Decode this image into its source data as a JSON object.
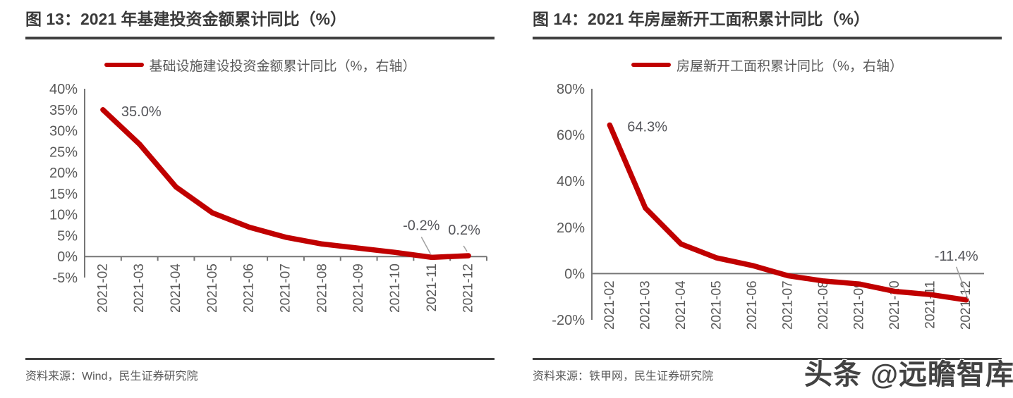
{
  "colors": {
    "series_red": "#C00000",
    "axis_gray": "#767676",
    "tick_label_gray": "#595959",
    "title_dark": "#3a3a3a",
    "rule_dark": "#404040",
    "leader_gray": "#a0a0a0"
  },
  "watermark": {
    "text": "头条 @远瞻智库"
  },
  "charts": [
    {
      "figure_title": "图 13：2021 年基建投资金额累计同比（%）",
      "legend": "基础设施建设投资金额累计同比（%，右轴）",
      "source": "资料来源：Wind，民生证券研究院",
      "chart_data": {
        "type": "line",
        "title": "2021 年基建投资金额累计同比（%）",
        "categories": [
          "2021-02",
          "2021-03",
          "2021-04",
          "2021-05",
          "2021-06",
          "2021-07",
          "2021-08",
          "2021-09",
          "2021-10",
          "2021-11",
          "2021-12"
        ],
        "series": [
          {
            "name": "基础设施建设投资金额累计同比（%，右轴）",
            "color": "#C00000",
            "values": [
              35.0,
              26.8,
              16.6,
              10.4,
              7.0,
              4.6,
              3.0,
              2.0,
              1.0,
              -0.2,
              0.2
            ]
          }
        ],
        "ylim": [
          -5,
          40
        ],
        "yticks": [
          {
            "v": 40,
            "label": "40%"
          },
          {
            "v": 35,
            "label": "35%"
          },
          {
            "v": 30,
            "label": "30%"
          },
          {
            "v": 25,
            "label": "25%"
          },
          {
            "v": 20,
            "label": "20%"
          },
          {
            "v": 15,
            "label": "15%"
          },
          {
            "v": 10,
            "label": "10%"
          },
          {
            "v": 5,
            "label": "5%"
          },
          {
            "v": 0,
            "label": "0%"
          },
          {
            "v": -5,
            "label": "-5%"
          }
        ],
        "point_labels": [
          {
            "index": 0,
            "text": "35.0%"
          },
          {
            "index": 9,
            "text": "-0.2%"
          },
          {
            "index": 10,
            "text": "0.2%"
          }
        ],
        "legend_position": "top",
        "grid": false
      }
    },
    {
      "figure_title": "图 14：2021 年房屋新开工面积累计同比（%）",
      "legend": "房屋新开工面积累计同比（%，右轴）",
      "source": "资料来源：铁甲网，民生证券研究院",
      "chart_data": {
        "type": "line",
        "title": "2021 年房屋新开工面积累计同比（%）",
        "categories": [
          "2021-02",
          "2021-03",
          "2021-04",
          "2021-05",
          "2021-06",
          "2021-07",
          "2021-08",
          "2021-09",
          "2021-10",
          "2021-11",
          "2021-12"
        ],
        "series": [
          {
            "name": "房屋新开工面积累计同比（%，右轴）",
            "color": "#C00000",
            "values": [
              64.3,
              28.4,
              12.8,
              6.8,
              3.5,
              -0.9,
              -3.2,
              -4.5,
              -7.7,
              -9.1,
              -11.4
            ]
          }
        ],
        "ylim": [
          -20,
          80
        ],
        "yticks": [
          {
            "v": 80,
            "label": "80%"
          },
          {
            "v": 60,
            "label": "60%"
          },
          {
            "v": 40,
            "label": "40%"
          },
          {
            "v": 20,
            "label": "20%"
          },
          {
            "v": 0,
            "label": "0%"
          },
          {
            "v": -20,
            "label": "-20%"
          }
        ],
        "point_labels": [
          {
            "index": 0,
            "text": "64.3%"
          },
          {
            "index": 10,
            "text": "-11.4%"
          }
        ],
        "legend_position": "top",
        "grid": false
      }
    }
  ]
}
